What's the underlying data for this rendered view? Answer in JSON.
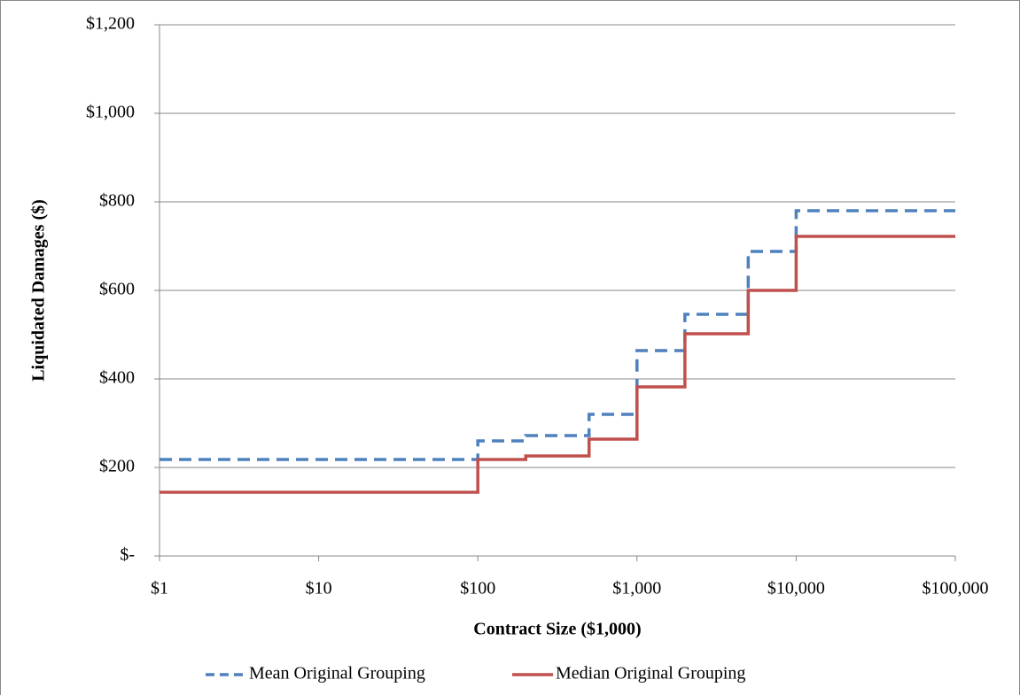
{
  "chart_data": {
    "type": "line",
    "step": "post",
    "x_label": "Contract Size ($1,000)",
    "y_label": "Liquidated Damages ($)",
    "x": [
      1,
      100,
      200,
      500,
      1000,
      2000,
      5000,
      10000,
      100000
    ],
    "series": [
      {
        "name": "Mean Original Grouping",
        "color": "#4f81bd",
        "dash": true,
        "values": [
          218,
          260,
          272,
          320,
          464,
          546,
          688,
          780,
          780
        ]
      },
      {
        "name": "Median Original Grouping",
        "color": "#c0504d",
        "dash": false,
        "values": [
          144,
          218,
          226,
          264,
          382,
          502,
          600,
          722,
          722
        ]
      }
    ],
    "xscale": "log",
    "xlim": [
      1,
      100000
    ],
    "xticks": [
      {
        "value": 1,
        "label": "$1"
      },
      {
        "value": 10,
        "label": "$10"
      },
      {
        "value": 100,
        "label": "$100"
      },
      {
        "value": 1000,
        "label": "$1,000"
      },
      {
        "value": 10000,
        "label": "$10,000"
      },
      {
        "value": 100000,
        "label": "$100,000"
      }
    ],
    "ylim": [
      0,
      1200
    ],
    "yticks": [
      {
        "value": 0,
        "label": "$-"
      },
      {
        "value": 200,
        "label": "$200"
      },
      {
        "value": 400,
        "label": "$400"
      },
      {
        "value": 600,
        "label": "$600"
      },
      {
        "value": 800,
        "label": "$800"
      },
      {
        "value": 1000,
        "label": "$1,000"
      },
      {
        "value": 1200,
        "label": "$1,200"
      }
    ],
    "grid": true,
    "legend": "bottom"
  }
}
